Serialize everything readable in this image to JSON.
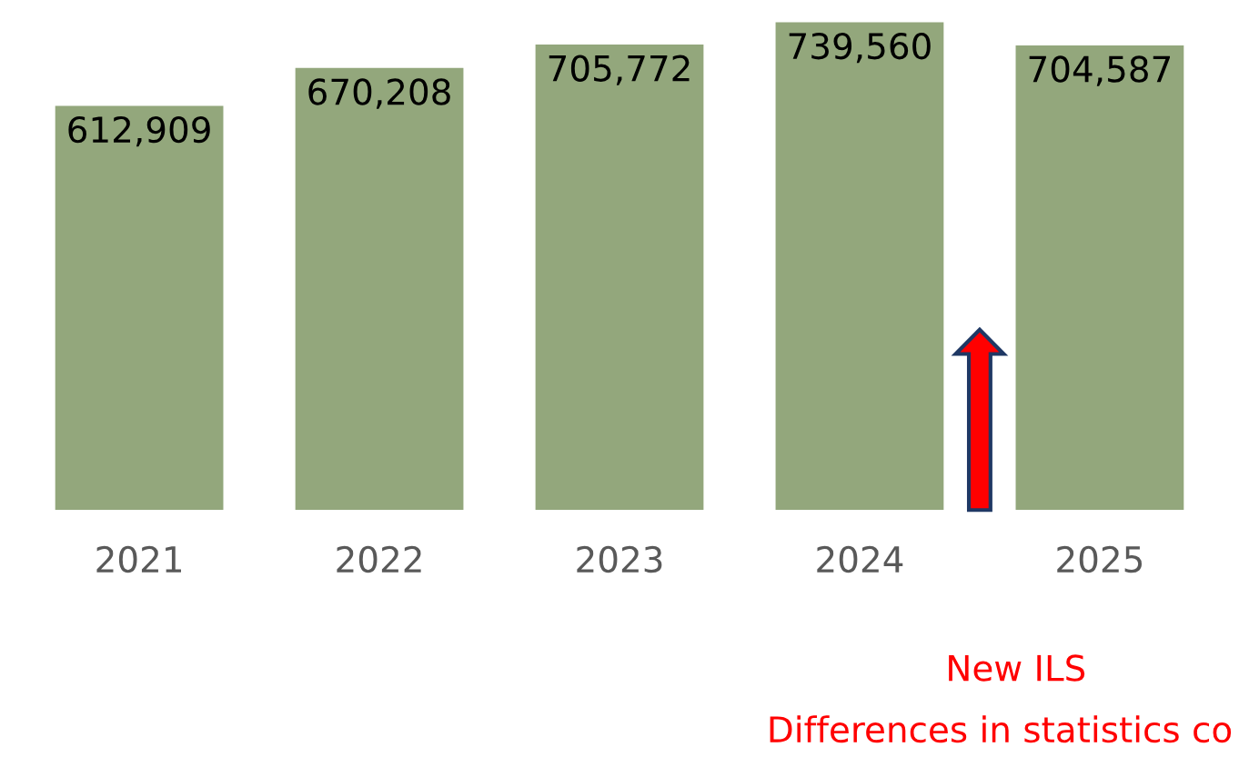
{
  "chart_data": {
    "type": "bar",
    "categories": [
      "2021",
      "2022",
      "2023",
      "2024",
      "2025"
    ],
    "values": [
      612909,
      670208,
      705772,
      739560,
      704587
    ],
    "color": "#93a77c",
    "value_labels": [
      "612,909",
      "670,208",
      "705,772",
      "739,560",
      "704,587"
    ],
    "grid": false,
    "legend": false,
    "tick_labels": "x",
    "annotations": [
      "New ILS",
      "Differences in statistics co"
    ]
  }
}
